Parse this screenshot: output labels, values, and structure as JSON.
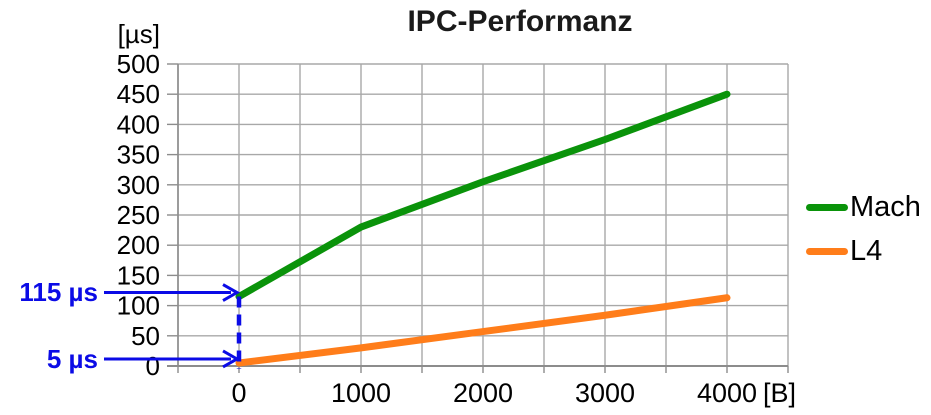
{
  "chart_data": {
    "type": "line",
    "title": "IPC-Performanz",
    "y_unit": "[µs]",
    "x_unit": "[B]",
    "x": [
      0,
      1000,
      2000,
      3000,
      4000
    ],
    "series": [
      {
        "name": "Mach",
        "color": "#0A930A",
        "values": [
          115,
          230,
          305,
          375,
          450
        ]
      },
      {
        "name": "L4",
        "color": "#FF7D1A",
        "values": [
          5,
          30,
          57,
          84,
          113
        ]
      }
    ],
    "xlim": [
      -500,
      4500
    ],
    "ylim": [
      0,
      500
    ],
    "x_ticks": [
      0,
      1000,
      2000,
      3000,
      4000
    ],
    "y_tick_step": 50,
    "grid_step_x": 500,
    "grid": true,
    "gridline_color": "#A8A8A8",
    "axis_color": "#8C8C8C",
    "legend_position": "right",
    "annotation_color": "#0B0BE6",
    "annotations": [
      {
        "label": "115 µs",
        "value_us": 115,
        "series": "Mach"
      },
      {
        "label": "5 µs",
        "value_us": 5,
        "series": "L4"
      }
    ]
  }
}
